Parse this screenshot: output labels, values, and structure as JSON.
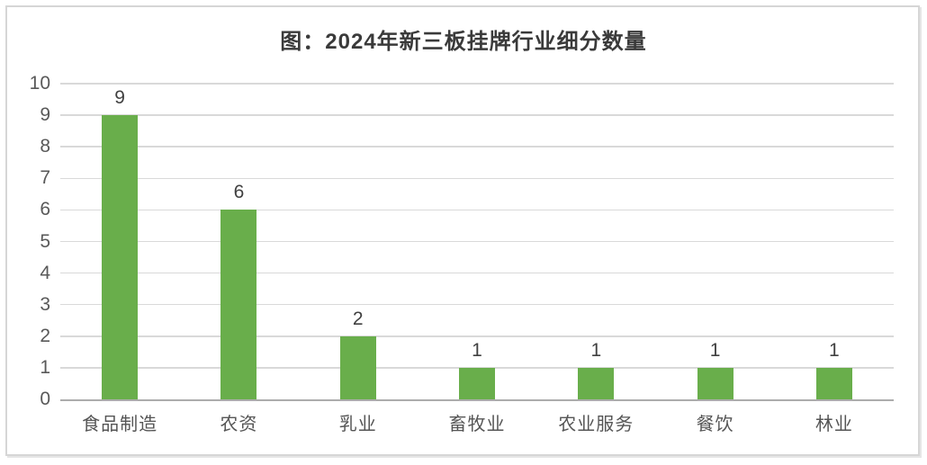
{
  "chart": {
    "title": "图：2024年新三板挂牌行业细分数量"
  },
  "chart_data": {
    "type": "bar",
    "title": "图：2024年新三板挂牌行业细分数量",
    "categories": [
      "食品制造",
      "农资",
      "乳业",
      "畜牧业",
      "农业服务",
      "餐饮",
      "林业"
    ],
    "values": [
      9,
      6,
      2,
      1,
      1,
      1,
      1
    ],
    "xlabel": "",
    "ylabel": "",
    "ylim": [
      0,
      10
    ],
    "ytick_step": 1,
    "yticks": [
      0,
      1,
      2,
      3,
      4,
      5,
      6,
      7,
      8,
      9,
      10
    ],
    "grid": true,
    "data_labels": true,
    "legend_position": "none",
    "bar_color": "#69ae4b",
    "gridline_color": "#d9d9d9",
    "axis_line_color": "#acacac",
    "label_color": "#595959",
    "value_label_color": "#404040",
    "title_color": "#3a3a3a",
    "background_color": "#ffffff",
    "border_color": "#d6d6d6"
  }
}
